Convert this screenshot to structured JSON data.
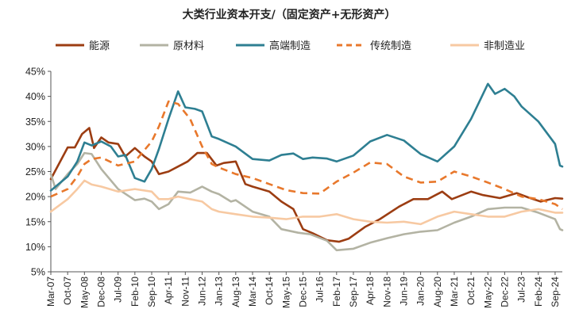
{
  "chart_data": {
    "type": "line",
    "title": "大类行业资本开支/（固定资产+无形资产）",
    "xlabel": "",
    "ylabel": "",
    "ylim": [
      0.05,
      0.45
    ],
    "yticks": [
      0.05,
      0.1,
      0.15,
      0.2,
      0.25,
      0.3,
      0.35,
      0.4,
      0.45
    ],
    "ytick_labels": [
      "5%",
      "10%",
      "15%",
      "20%",
      "25%",
      "30%",
      "35%",
      "40%",
      "45%"
    ],
    "x_start": "Mar-07",
    "x_end": "Dec-24",
    "x_tick_labels": [
      "Mar-07",
      "Oct-07",
      "May-08",
      "Dec-08",
      "Jul-09",
      "Feb-10",
      "Sep-10",
      "Apr-11",
      "Nov-11",
      "Jun-12",
      "Jan-13",
      "Aug-13",
      "Mar-14",
      "Oct-14",
      "May-15",
      "Dec-15",
      "Jul-16",
      "Feb-17",
      "Sep-17",
      "Apr-18",
      "Nov-18",
      "Jun-19",
      "Jan-20",
      "Aug-20",
      "Mar-21",
      "Oct-21",
      "May-22",
      "Dec-22",
      "Jul-23",
      "Feb-24",
      "Sep-24"
    ],
    "legend_position": "top",
    "grid": false,
    "series": [
      {
        "name": "能源",
        "color": "#9c3d12",
        "dash": false,
        "points": [
          [
            "Mar-07",
            0.235
          ],
          [
            "Oct-07",
            0.298
          ],
          [
            "Jan-08",
            0.298
          ],
          [
            "Apr-08",
            0.325
          ],
          [
            "Jul-08",
            0.337
          ],
          [
            "Sep-08",
            0.297
          ],
          [
            "Dec-08",
            0.318
          ],
          [
            "Mar-09",
            0.308
          ],
          [
            "Jul-09",
            0.305
          ],
          [
            "Oct-09",
            0.28
          ],
          [
            "Feb-10",
            0.297
          ],
          [
            "Jun-10",
            0.28
          ],
          [
            "Sep-10",
            0.27
          ],
          [
            "Dec-10",
            0.245
          ],
          [
            "Apr-11",
            0.25
          ],
          [
            "Aug-11",
            0.26
          ],
          [
            "Dec-11",
            0.27
          ],
          [
            "Apr-12",
            0.287
          ],
          [
            "Aug-12",
            0.287
          ],
          [
            "Dec-12",
            0.262
          ],
          [
            "Mar-13",
            0.267
          ],
          [
            "Aug-13",
            0.27
          ],
          [
            "Dec-13",
            0.225
          ],
          [
            "Mar-14",
            0.22
          ],
          [
            "Oct-14",
            0.21
          ],
          [
            "Mar-15",
            0.19
          ],
          [
            "Aug-15",
            0.175
          ],
          [
            "Dec-15",
            0.135
          ],
          [
            "Apr-16",
            0.127
          ],
          [
            "Oct-16",
            0.113
          ],
          [
            "Mar-17",
            0.11
          ],
          [
            "Jul-17",
            0.116
          ],
          [
            "Feb-18",
            0.14
          ],
          [
            "Aug-18",
            0.155
          ],
          [
            "Apr-19",
            0.18
          ],
          [
            "Oct-19",
            0.195
          ],
          [
            "Apr-20",
            0.195
          ],
          [
            "Oct-20",
            0.21
          ],
          [
            "Feb-21",
            0.195
          ],
          [
            "Oct-21",
            0.21
          ],
          [
            "Mar-22",
            0.203
          ],
          [
            "Oct-22",
            0.197
          ],
          [
            "May-23",
            0.207
          ],
          [
            "Oct-23",
            0.198
          ],
          [
            "Mar-24",
            0.19
          ],
          [
            "Sep-24",
            0.197
          ],
          [
            "Dec-24",
            0.196
          ]
        ]
      },
      {
        "name": "原材料",
        "color": "#b3b3a3",
        "dash": false,
        "points": [
          [
            "Mar-07",
            0.245
          ],
          [
            "May-07",
            0.215
          ],
          [
            "Oct-07",
            0.245
          ],
          [
            "Feb-08",
            0.265
          ],
          [
            "May-08",
            0.287
          ],
          [
            "Aug-08",
            0.285
          ],
          [
            "Dec-08",
            0.255
          ],
          [
            "Jul-09",
            0.215
          ],
          [
            "Feb-10",
            0.193
          ],
          [
            "Jun-10",
            0.196
          ],
          [
            "Sep-10",
            0.19
          ],
          [
            "Dec-10",
            0.175
          ],
          [
            "Apr-11",
            0.185
          ],
          [
            "Aug-11",
            0.21
          ],
          [
            "Jan-12",
            0.208
          ],
          [
            "Jun-12",
            0.22
          ],
          [
            "Oct-12",
            0.21
          ],
          [
            "Jan-13",
            0.205
          ],
          [
            "Jun-13",
            0.19
          ],
          [
            "Aug-13",
            0.193
          ],
          [
            "Mar-14",
            0.17
          ],
          [
            "Oct-14",
            0.16
          ],
          [
            "Mar-15",
            0.135
          ],
          [
            "Oct-15",
            0.128
          ],
          [
            "Mar-16",
            0.125
          ],
          [
            "Oct-16",
            0.112
          ],
          [
            "Feb-17",
            0.093
          ],
          [
            "Sep-17",
            0.096
          ],
          [
            "Apr-18",
            0.108
          ],
          [
            "Nov-18",
            0.117
          ],
          [
            "Jun-19",
            0.125
          ],
          [
            "Jan-20",
            0.13
          ],
          [
            "Aug-20",
            0.133
          ],
          [
            "Mar-21",
            0.148
          ],
          [
            "Oct-21",
            0.16
          ],
          [
            "May-22",
            0.175
          ],
          [
            "Dec-22",
            0.178
          ],
          [
            "Jul-23",
            0.178
          ],
          [
            "Feb-24",
            0.168
          ],
          [
            "Sep-24",
            0.155
          ],
          [
            "Nov-24",
            0.135
          ],
          [
            "Dec-24",
            0.133
          ]
        ]
      },
      {
        "name": "高端制造",
        "color": "#2e7f92",
        "dash": false,
        "points": [
          [
            "Mar-07",
            0.212
          ],
          [
            "Oct-07",
            0.24
          ],
          [
            "Feb-08",
            0.27
          ],
          [
            "May-08",
            0.308
          ],
          [
            "Aug-08",
            0.302
          ],
          [
            "Dec-08",
            0.31
          ],
          [
            "Apr-09",
            0.3
          ],
          [
            "Jul-09",
            0.28
          ],
          [
            "Oct-09",
            0.283
          ],
          [
            "Feb-10",
            0.237
          ],
          [
            "Jun-10",
            0.23
          ],
          [
            "Sep-10",
            0.255
          ],
          [
            "Dec-10",
            0.295
          ],
          [
            "Apr-11",
            0.355
          ],
          [
            "Aug-11",
            0.41
          ],
          [
            "Nov-11",
            0.378
          ],
          [
            "Mar-12",
            0.375
          ],
          [
            "Jun-12",
            0.37
          ],
          [
            "Oct-12",
            0.32
          ],
          [
            "Jan-13",
            0.315
          ],
          [
            "Aug-13",
            0.3
          ],
          [
            "Mar-14",
            0.275
          ],
          [
            "Oct-14",
            0.272
          ],
          [
            "Mar-15",
            0.283
          ],
          [
            "Aug-15",
            0.286
          ],
          [
            "Dec-15",
            0.275
          ],
          [
            "Apr-16",
            0.278
          ],
          [
            "Oct-16",
            0.276
          ],
          [
            "Feb-17",
            0.27
          ],
          [
            "Sep-17",
            0.282
          ],
          [
            "Apr-18",
            0.31
          ],
          [
            "Nov-18",
            0.323
          ],
          [
            "Jun-19",
            0.312
          ],
          [
            "Jan-20",
            0.285
          ],
          [
            "Aug-20",
            0.27
          ],
          [
            "Mar-21",
            0.3
          ],
          [
            "Oct-21",
            0.355
          ],
          [
            "May-22",
            0.425
          ],
          [
            "Aug-22",
            0.405
          ],
          [
            "Dec-22",
            0.415
          ],
          [
            "Apr-23",
            0.4
          ],
          [
            "Jul-23",
            0.38
          ],
          [
            "Feb-24",
            0.35
          ],
          [
            "Sep-24",
            0.305
          ],
          [
            "Nov-24",
            0.262
          ],
          [
            "Dec-24",
            0.26
          ]
        ]
      },
      {
        "name": "传统制造",
        "color": "#e8782c",
        "dash": true,
        "points": [
          [
            "Mar-07",
            0.2
          ],
          [
            "Oct-07",
            0.215
          ],
          [
            "Feb-08",
            0.24
          ],
          [
            "May-08",
            0.265
          ],
          [
            "Aug-08",
            0.275
          ],
          [
            "Dec-08",
            0.278
          ],
          [
            "Jul-09",
            0.262
          ],
          [
            "Feb-10",
            0.27
          ],
          [
            "Sep-10",
            0.31
          ],
          [
            "Dec-10",
            0.34
          ],
          [
            "Apr-11",
            0.39
          ],
          [
            "Aug-11",
            0.385
          ],
          [
            "Jan-12",
            0.355
          ],
          [
            "Jun-12",
            0.3
          ],
          [
            "Oct-12",
            0.265
          ],
          [
            "Jan-13",
            0.258
          ],
          [
            "Aug-13",
            0.245
          ],
          [
            "Mar-14",
            0.237
          ],
          [
            "Oct-14",
            0.225
          ],
          [
            "May-15",
            0.213
          ],
          [
            "Dec-15",
            0.207
          ],
          [
            "Jul-16",
            0.206
          ],
          [
            "Feb-17",
            0.23
          ],
          [
            "Sep-17",
            0.248
          ],
          [
            "Apr-18",
            0.268
          ],
          [
            "Nov-18",
            0.265
          ],
          [
            "Jun-19",
            0.24
          ],
          [
            "Jan-20",
            0.228
          ],
          [
            "Aug-20",
            0.23
          ],
          [
            "Mar-21",
            0.25
          ],
          [
            "Oct-21",
            0.24
          ],
          [
            "May-22",
            0.228
          ],
          [
            "Dec-22",
            0.215
          ],
          [
            "Jul-23",
            0.2
          ],
          [
            "Feb-24",
            0.195
          ],
          [
            "Sep-24",
            0.185
          ],
          [
            "Dec-24",
            0.175
          ]
        ]
      },
      {
        "name": "非制造业",
        "color": "#f7c9a2",
        "dash": false,
        "points": [
          [
            "Mar-07",
            0.17
          ],
          [
            "Oct-07",
            0.195
          ],
          [
            "Feb-08",
            0.215
          ],
          [
            "May-08",
            0.232
          ],
          [
            "Aug-08",
            0.224
          ],
          [
            "Dec-08",
            0.22
          ],
          [
            "Jul-09",
            0.21
          ],
          [
            "Feb-10",
            0.215
          ],
          [
            "Sep-10",
            0.21
          ],
          [
            "Dec-10",
            0.195
          ],
          [
            "Apr-11",
            0.195
          ],
          [
            "Aug-11",
            0.2
          ],
          [
            "Jan-12",
            0.195
          ],
          [
            "Jun-12",
            0.19
          ],
          [
            "Oct-12",
            0.175
          ],
          [
            "Jan-13",
            0.17
          ],
          [
            "Aug-13",
            0.165
          ],
          [
            "Mar-14",
            0.16
          ],
          [
            "Oct-14",
            0.158
          ],
          [
            "May-15",
            0.155
          ],
          [
            "Dec-15",
            0.16
          ],
          [
            "Jul-16",
            0.16
          ],
          [
            "Feb-17",
            0.165
          ],
          [
            "Sep-17",
            0.155
          ],
          [
            "Apr-18",
            0.15
          ],
          [
            "Nov-18",
            0.148
          ],
          [
            "Jun-19",
            0.15
          ],
          [
            "Jan-20",
            0.145
          ],
          [
            "Aug-20",
            0.16
          ],
          [
            "Mar-21",
            0.17
          ],
          [
            "Oct-21",
            0.165
          ],
          [
            "May-22",
            0.16
          ],
          [
            "Dec-22",
            0.16
          ],
          [
            "Jul-23",
            0.17
          ],
          [
            "Feb-24",
            0.175
          ],
          [
            "Sep-24",
            0.168
          ],
          [
            "Dec-24",
            0.168
          ]
        ]
      }
    ]
  }
}
